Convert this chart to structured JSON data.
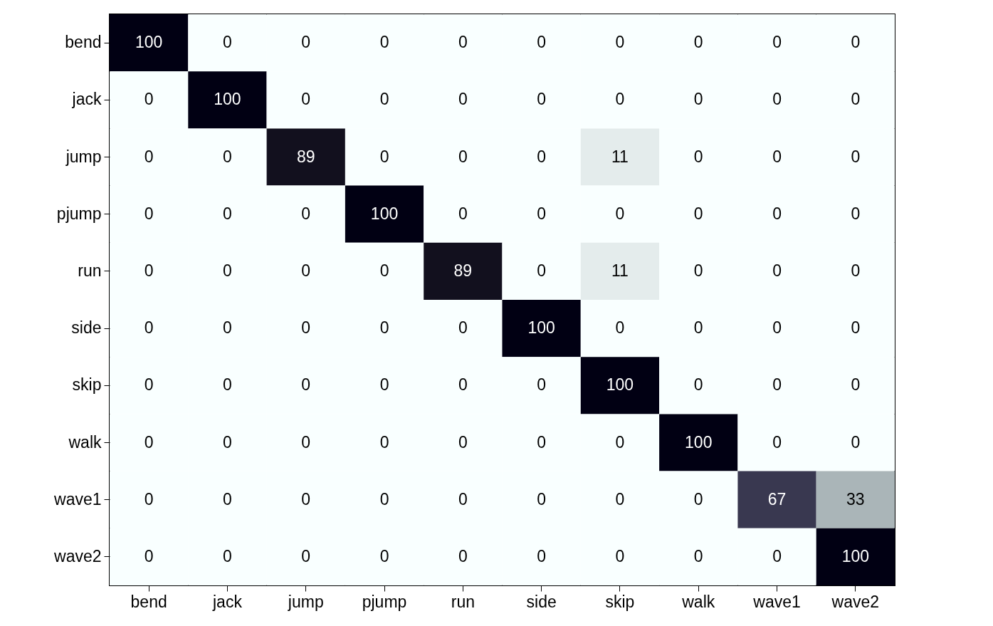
{
  "chart_data": {
    "type": "heatmap",
    "categories": [
      "bend",
      "jack",
      "jump",
      "pjump",
      "run",
      "side",
      "skip",
      "walk",
      "wave1",
      "wave2"
    ],
    "y_categories": [
      "bend",
      "jack",
      "jump",
      "pjump",
      "run",
      "side",
      "skip",
      "walk",
      "wave1",
      "wave2"
    ],
    "cells": [
      [
        100,
        0,
        0,
        0,
        0,
        0,
        0,
        0,
        0,
        0
      ],
      [
        0,
        100,
        0,
        0,
        0,
        0,
        0,
        0,
        0,
        0
      ],
      [
        0,
        0,
        89,
        0,
        0,
        0,
        11,
        0,
        0,
        0
      ],
      [
        0,
        0,
        0,
        100,
        0,
        0,
        0,
        0,
        0,
        0
      ],
      [
        0,
        0,
        0,
        0,
        89,
        0,
        11,
        0,
        0,
        0
      ],
      [
        0,
        0,
        0,
        0,
        0,
        100,
        0,
        0,
        0,
        0
      ],
      [
        0,
        0,
        0,
        0,
        0,
        0,
        100,
        0,
        0,
        0
      ],
      [
        0,
        0,
        0,
        0,
        0,
        0,
        0,
        100,
        0,
        0
      ],
      [
        0,
        0,
        0,
        0,
        0,
        0,
        0,
        0,
        67,
        33
      ],
      [
        0,
        0,
        0,
        0,
        0,
        0,
        0,
        0,
        0,
        100
      ]
    ],
    "data_labels": true
  }
}
